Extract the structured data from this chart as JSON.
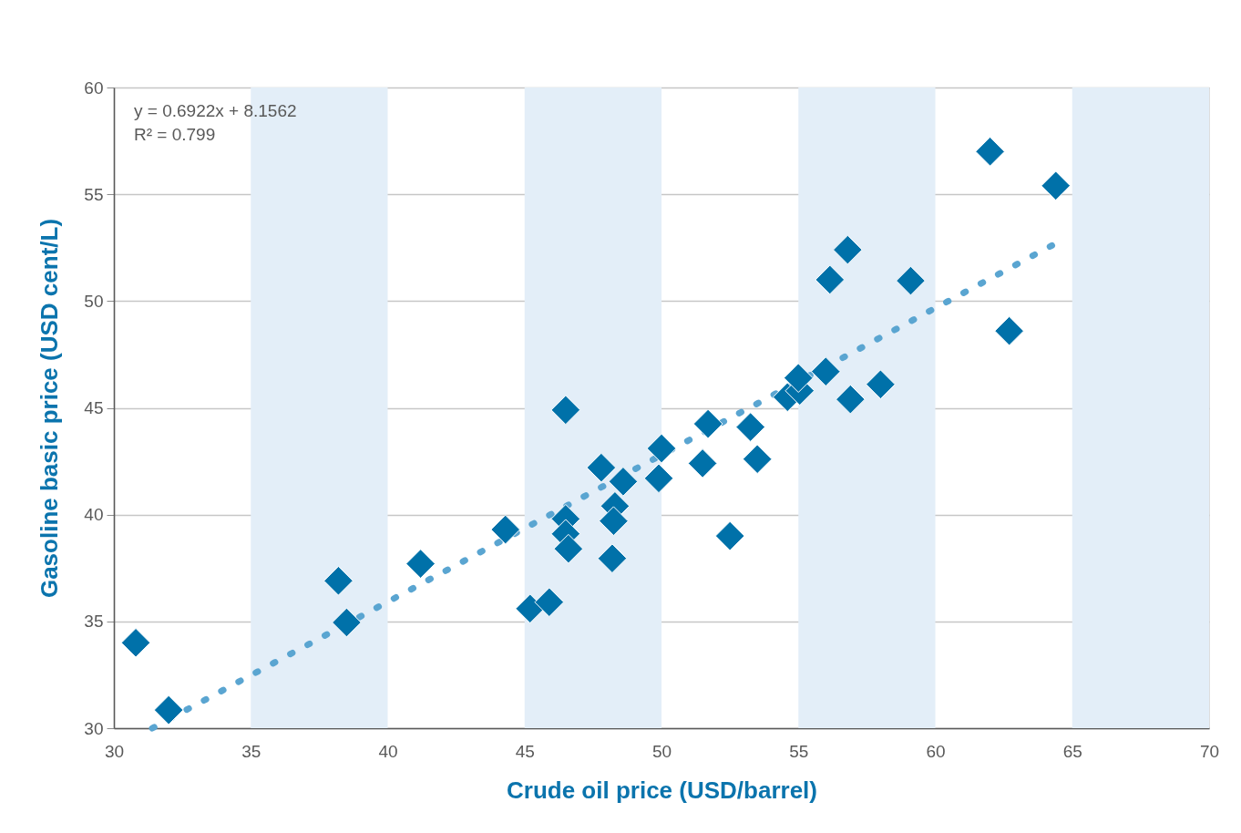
{
  "chart_data": {
    "type": "scatter",
    "xlabel": "Crude oil price (USD/barrel)",
    "ylabel": "Gasoline basic price (USD cent/L)",
    "annotations": [
      "y = 0.6922x + 8.1562",
      "R² = 0.799"
    ],
    "xlim": [
      30,
      70
    ],
    "ylim": [
      30,
      60
    ],
    "xticks": [
      30,
      35,
      40,
      45,
      50,
      55,
      60,
      65,
      70
    ],
    "yticks": [
      30,
      35,
      40,
      45,
      50,
      55,
      60
    ],
    "grid": "y",
    "marker": "diamond",
    "bands": [
      {
        "axis": "x",
        "from": 35,
        "to": 40,
        "color": "#e3eef8"
      },
      {
        "axis": "x",
        "from": 45,
        "to": 50,
        "color": "#e3eef8"
      },
      {
        "axis": "x",
        "from": 55,
        "to": 60,
        "color": "#e3eef8"
      },
      {
        "axis": "x",
        "from": 65,
        "to": 70,
        "color": "#e3eef8"
      }
    ],
    "series": [
      {
        "type": "line",
        "color": "#5aa5d1",
        "line_style": "dotted",
        "marker": "none",
        "x": [
          31.4,
          64.4
        ],
        "values": [
          30.0,
          52.7
        ]
      },
      {
        "color": "#0071a9",
        "x": [
          30.8,
          32.0,
          38.2,
          38.5,
          41.2,
          44.3,
          45.2,
          45.9,
          46.5,
          46.5,
          46.5,
          46.6,
          47.8,
          48.6,
          48.3,
          48.25,
          48.2,
          49.9,
          50.0,
          51.5,
          51.7,
          52.5,
          53.25,
          53.5,
          54.6,
          55.05,
          55.0,
          56.0,
          56.9,
          58.0,
          56.15,
          56.8,
          59.1,
          62.0,
          64.4,
          62.7
        ],
        "values": [
          34.0,
          30.85,
          36.9,
          34.95,
          37.7,
          39.3,
          35.6,
          35.9,
          44.9,
          39.8,
          39.1,
          38.4,
          42.2,
          41.55,
          40.4,
          39.7,
          37.95,
          41.7,
          43.1,
          42.4,
          44.25,
          39.0,
          44.1,
          42.6,
          45.5,
          45.8,
          46.4,
          46.7,
          45.4,
          46.1,
          51.0,
          52.4,
          50.95,
          57.0,
          55.4,
          48.6
        ]
      }
    ]
  }
}
